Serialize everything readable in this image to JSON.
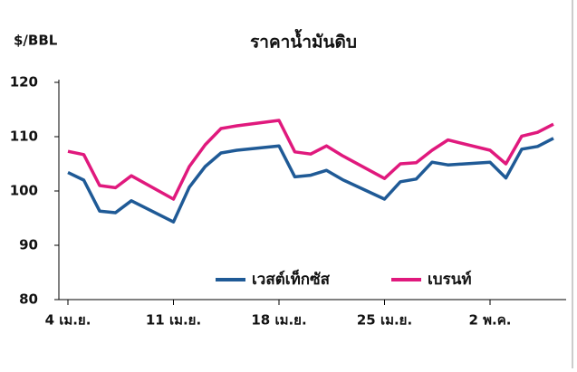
{
  "chart_data": {
    "type": "line",
    "title": "ราคาน้ำมันดิบ",
    "y_label": "$/BBL",
    "categories": [
      "4 เม.ย.",
      null,
      null,
      null,
      null,
      "11 เม.ย.",
      null,
      null,
      null,
      null,
      "18 เม.ย.",
      null,
      null,
      null,
      null,
      "25 เม.ย.",
      null,
      null,
      null,
      null,
      "2 พ.ค.",
      null,
      null,
      null,
      null
    ],
    "series": [
      {
        "name": "เวสต์เท็กซัส",
        "color": "#1f5a96",
        "values": [
          103.4,
          102,
          96.3,
          96,
          98.2,
          94.3,
          100.7,
          104.5,
          107,
          107.5,
          108.3,
          102.6,
          102.9,
          103.8,
          102.1,
          98.5,
          101.7,
          102.2,
          105.3,
          104.8,
          105.3,
          102.4,
          107.7,
          108.2,
          109.7
        ]
      },
      {
        "name": "เบรนท์",
        "color": "#e0197d",
        "values": [
          107.3,
          106.7,
          101,
          100.6,
          102.8,
          98.5,
          104.5,
          108.5,
          111.5,
          112,
          113,
          107.2,
          106.8,
          108.3,
          106.5,
          102.3,
          105,
          105.2,
          107.5,
          109.4,
          107.5,
          105,
          110.1,
          110.8,
          112.3
        ]
      }
    ],
    "ylim": [
      80,
      120
    ],
    "yticks": [
      80,
      90,
      100,
      110,
      120
    ],
    "grid": false,
    "legend": "bottom-right"
  }
}
